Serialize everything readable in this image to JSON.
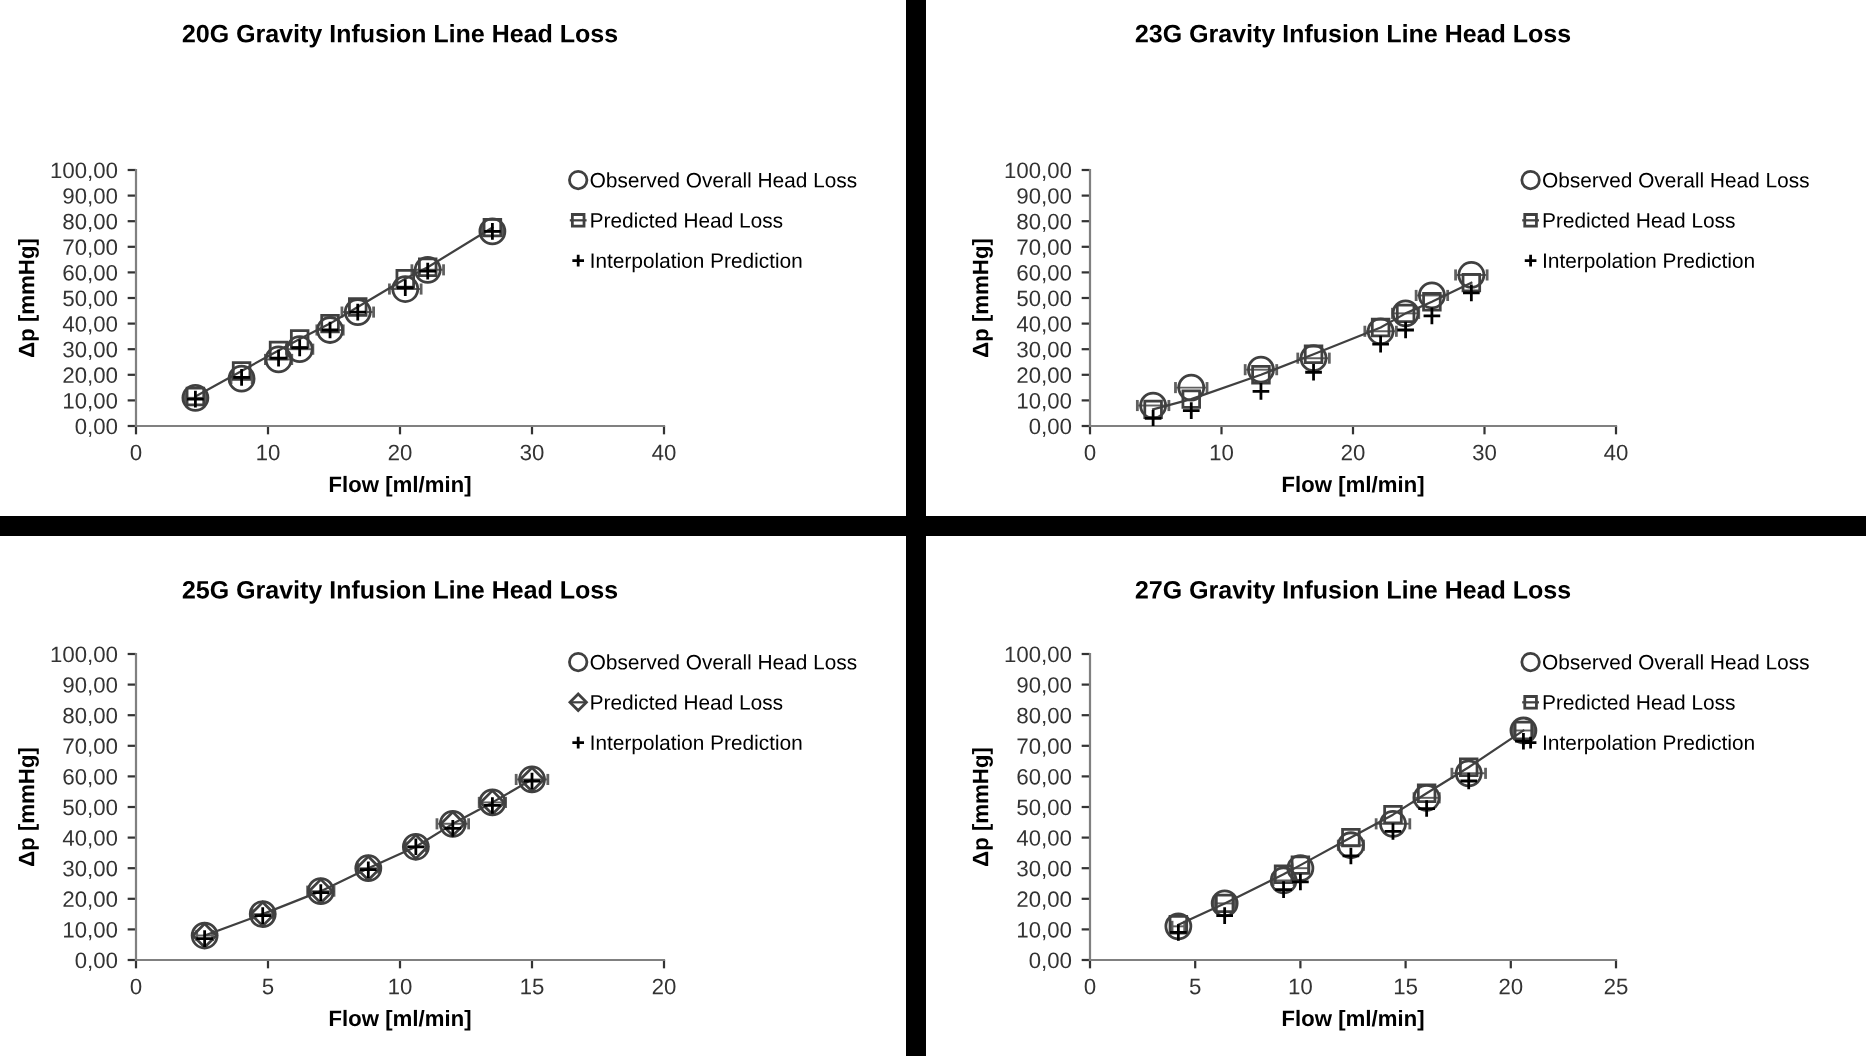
{
  "chart_data": [
    {
      "type": "scatter",
      "title": "20G Gravity Infusion Line Head Loss",
      "xlabel": "Flow [ml/min]",
      "ylabel": "Δp [mmHg]",
      "xlim": [
        0,
        40
      ],
      "xticks": [
        0,
        10,
        20,
        30,
        40
      ],
      "ylim": [
        0,
        100
      ],
      "yticks": [
        {
          "value": 0,
          "label": "0,00"
        },
        {
          "value": 10,
          "label": "10,00"
        },
        {
          "value": 20,
          "label": "20,00"
        },
        {
          "value": 30,
          "label": "30,00"
        },
        {
          "value": 40,
          "label": "40,00"
        },
        {
          "value": 50,
          "label": "50,00"
        },
        {
          "value": 60,
          "label": "60,00"
        },
        {
          "value": 70,
          "label": "70,00"
        },
        {
          "value": 80,
          "label": "80,00"
        },
        {
          "value": 90,
          "label": "90,00"
        },
        {
          "value": 100,
          "label": "100,00"
        }
      ],
      "grid": false,
      "legend": "top right",
      "series": [
        {
          "name": "Observed Overall Head Loss",
          "type": "scatter",
          "marker": "circle",
          "color": "#404040",
          "x": [
            4.5,
            8,
            10.8,
            12.4,
            14.7,
            16.8,
            20.4,
            22.1,
            27
          ],
          "values": [
            11,
            18.5,
            26,
            30,
            37.5,
            44.5,
            53.5,
            61,
            76
          ],
          "xerrors": [
            0.8,
            0.8,
            1,
            1,
            1,
            1.2,
            1.2,
            1.2,
            0.8
          ]
        },
        {
          "name": "Predicted Head Loss",
          "type": "line",
          "marker": "square",
          "line_style": "solid",
          "color": "#404040",
          "x": [
            4.5,
            8,
            10.8,
            12.4,
            14.7,
            16.8,
            20.4,
            22.1,
            27
          ],
          "values": [
            11.5,
            21.5,
            29.5,
            34,
            40,
            46.5,
            57.5,
            62,
            77.5
          ]
        },
        {
          "name": "Interpolation Prediction",
          "type": "scatter",
          "marker": "cross",
          "color": "#000000",
          "x": [
            4.5,
            8,
            10.8,
            12.4,
            14.7,
            16.8,
            20.4,
            22.1,
            27
          ],
          "values": [
            10.5,
            19,
            26.5,
            30.5,
            37.5,
            44.5,
            54,
            60.5,
            76
          ]
        }
      ]
    },
    {
      "type": "scatter",
      "title": "23G Gravity Infusion Line Head Loss",
      "xlabel": "Flow [ml/min]",
      "ylabel": "Δp [mmHg]",
      "xlim": [
        0,
        40
      ],
      "xticks": [
        0,
        10,
        20,
        30,
        40
      ],
      "ylim": [
        0,
        100
      ],
      "yticks": [
        {
          "value": 0,
          "label": "0,00"
        },
        {
          "value": 10,
          "label": "10,00"
        },
        {
          "value": 20,
          "label": "20,00"
        },
        {
          "value": 30,
          "label": "30,00"
        },
        {
          "value": 40,
          "label": "40,00"
        },
        {
          "value": 50,
          "label": "50,00"
        },
        {
          "value": 60,
          "label": "60,00"
        },
        {
          "value": 70,
          "label": "70,00"
        },
        {
          "value": 80,
          "label": "80,00"
        },
        {
          "value": 90,
          "label": "90,00"
        },
        {
          "value": 100,
          "label": "100,00"
        }
      ],
      "grid": false,
      "legend": "top right",
      "series": [
        {
          "name": "Observed Overall Head Loss",
          "type": "scatter",
          "marker": "circle",
          "color": "#404040",
          "x": [
            4.8,
            7.7,
            13,
            17,
            22.1,
            24,
            26,
            29
          ],
          "values": [
            8,
            15,
            22,
            26.5,
            37,
            44,
            51,
            59
          ],
          "xerrors": [
            1.2,
            1.2,
            1.2,
            1.2,
            1.2,
            1,
            1.2,
            1.2
          ]
        },
        {
          "name": "Predicted Head Loss",
          "type": "line",
          "marker": "square",
          "line_style": "solid",
          "color": "#404040",
          "x": [
            4.8,
            7.7,
            13,
            17,
            22.1,
            24,
            26,
            29
          ],
          "values": [
            6.5,
            10.5,
            20,
            28,
            38.5,
            44,
            48.5,
            56
          ]
        },
        {
          "name": "Interpolation Prediction",
          "type": "scatter",
          "marker": "cross",
          "color": "#000000",
          "x": [
            4.8,
            7.7,
            13,
            17,
            22.1,
            24,
            26,
            29
          ],
          "values": [
            3,
            6,
            13.5,
            21,
            32,
            37.5,
            43,
            52
          ]
        }
      ]
    },
    {
      "type": "scatter",
      "title": "25G Gravity Infusion Line Head Loss",
      "xlabel": "Flow [ml/min]",
      "ylabel": "Δp [mmHg]",
      "xlim": [
        0,
        20
      ],
      "xticks": [
        0,
        5,
        10,
        15,
        20
      ],
      "ylim": [
        0,
        100
      ],
      "yticks": [
        {
          "value": 0,
          "label": "0,00"
        },
        {
          "value": 10,
          "label": "10,00"
        },
        {
          "value": 20,
          "label": "20,00"
        },
        {
          "value": 30,
          "label": "30,00"
        },
        {
          "value": 40,
          "label": "40,00"
        },
        {
          "value": 50,
          "label": "50,00"
        },
        {
          "value": 60,
          "label": "60,00"
        },
        {
          "value": 70,
          "label": "70,00"
        },
        {
          "value": 80,
          "label": "80,00"
        },
        {
          "value": 90,
          "label": "90,00"
        },
        {
          "value": 100,
          "label": "100,00"
        }
      ],
      "grid": false,
      "legend": "top right",
      "series": [
        {
          "name": "Observed Overall Head Loss",
          "type": "scatter",
          "marker": "circle",
          "color": "#404040",
          "x": [
            2.6,
            4.8,
            7,
            8.8,
            10.6,
            12,
            13.5,
            15
          ],
          "values": [
            8,
            15,
            22.5,
            30,
            37,
            44.5,
            51.5,
            59
          ],
          "xerrors": [
            0.3,
            0.4,
            0.5,
            0.4,
            0.4,
            0.6,
            0.5,
            0.6
          ]
        },
        {
          "name": "Predicted Head Loss",
          "type": "line",
          "marker": "diamond",
          "line_style": "solid",
          "color": "#404040",
          "x": [
            2.6,
            4.8,
            7,
            8.8,
            10.6,
            12,
            13.5,
            15
          ],
          "values": [
            8,
            15,
            22.5,
            30,
            37,
            44.5,
            51.5,
            59
          ]
        },
        {
          "name": "Interpolation Prediction",
          "type": "scatter",
          "marker": "cross",
          "color": "#000000",
          "x": [
            2.6,
            4.8,
            7,
            8.8,
            10.6,
            12,
            13.5,
            15
          ],
          "values": [
            7,
            14.5,
            22,
            29.5,
            37,
            43,
            50.5,
            58.5
          ]
        }
      ]
    },
    {
      "type": "scatter",
      "title": "27G Gravity Infusion Line Head Loss",
      "xlabel": "Flow [ml/min]",
      "ylabel": "Δp [mmHg]",
      "xlim": [
        0,
        25
      ],
      "xticks": [
        0,
        5,
        10,
        15,
        20,
        25
      ],
      "ylim": [
        0,
        100
      ],
      "yticks": [
        {
          "value": 0,
          "label": "0,00"
        },
        {
          "value": 10,
          "label": "10,00"
        },
        {
          "value": 20,
          "label": "20,00"
        },
        {
          "value": 30,
          "label": "30,00"
        },
        {
          "value": 40,
          "label": "40,00"
        },
        {
          "value": 50,
          "label": "50,00"
        },
        {
          "value": 60,
          "label": "60,00"
        },
        {
          "value": 70,
          "label": "70,00"
        },
        {
          "value": 80,
          "label": "80,00"
        },
        {
          "value": 90,
          "label": "90,00"
        },
        {
          "value": 100,
          "label": "100,00"
        }
      ],
      "grid": false,
      "legend": "top right",
      "series": [
        {
          "name": "Observed Overall Head Loss",
          "type": "scatter",
          "marker": "circle",
          "color": "#404040",
          "x": [
            4.2,
            6.4,
            9.2,
            10,
            12.4,
            14.4,
            16,
            18,
            20.6
          ],
          "values": [
            11,
            18.5,
            26,
            30,
            37.5,
            44.5,
            53,
            61,
            75
          ],
          "xerrors": [
            0.3,
            0.5,
            0.5,
            0.4,
            0.6,
            0.8,
            0.6,
            0.8,
            0.5
          ]
        },
        {
          "name": "Predicted Head Loss",
          "type": "line",
          "marker": "square",
          "line_style": "solid",
          "color": "#404040",
          "x": [
            4.2,
            6.4,
            9.2,
            10,
            12.4,
            14.4,
            16,
            18,
            20.6
          ],
          "values": [
            11.5,
            18.5,
            28,
            31,
            40,
            47.5,
            54.5,
            63,
            75
          ]
        },
        {
          "name": "Interpolation Prediction",
          "type": "scatter",
          "marker": "cross",
          "color": "#000000",
          "x": [
            4.2,
            6.4,
            9.2,
            10,
            12.4,
            14.4,
            16,
            18,
            20.6
          ],
          "values": [
            9,
            14.5,
            23,
            25.5,
            34,
            42,
            49.5,
            58.5,
            71.5
          ]
        }
      ]
    }
  ]
}
